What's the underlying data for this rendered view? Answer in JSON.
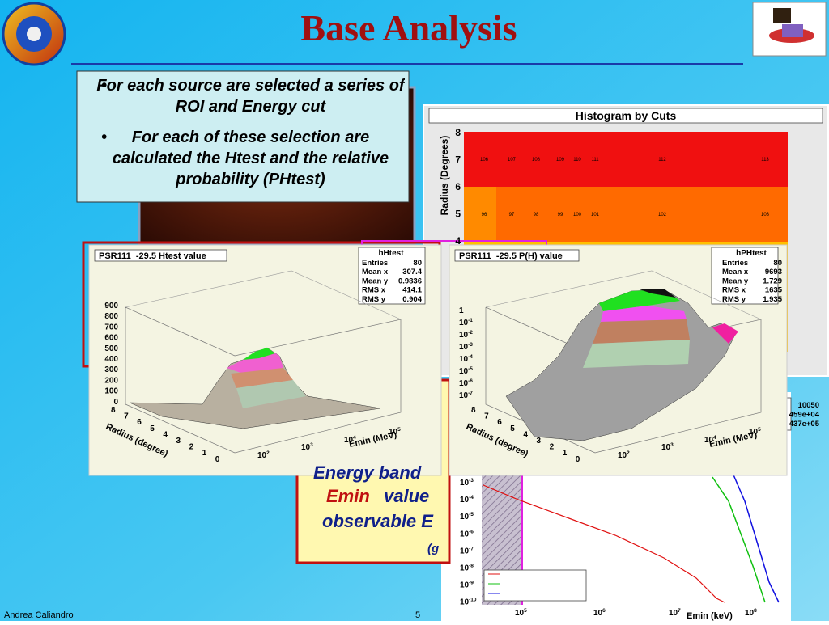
{
  "header": {
    "title": "Base Analysis"
  },
  "bullets": [
    "For each source are selected a series of ROI and Energy cut",
    "For each of these selection are calculated the Htest and the relative probability (PHtest)"
  ],
  "footer": {
    "author": "Andrea Caliandro",
    "page": "5"
  },
  "histogram_by_cuts": {
    "title": "Histogram by Cuts",
    "y_label": "Radius (Degrees)",
    "yticks": [
      "8",
      "7",
      "6",
      "5",
      "4"
    ],
    "row_top": [
      "106",
      "107",
      "108",
      "109",
      "110",
      "111",
      "112",
      "113"
    ],
    "row_middle": [
      "96",
      "97",
      "98",
      "99",
      "100",
      "101",
      "102",
      "103"
    ]
  },
  "htest_panel": {
    "title": "PSR111_-29.5 Htest value",
    "stats_name": "hHtest",
    "stats": [
      [
        "Entries",
        "80"
      ],
      [
        "Mean x",
        "307.4"
      ],
      [
        "Mean y",
        "0.9836"
      ],
      [
        "RMS x",
        "414.1"
      ],
      [
        "RMS y",
        "0.904"
      ]
    ],
    "zticks": [
      "900",
      "800",
      "700",
      "600",
      "500",
      "400",
      "300",
      "200",
      "100",
      "0"
    ],
    "radius_label": "Radius (degree)",
    "radius_ticks": [
      "8",
      "7",
      "6",
      "5",
      "4",
      "3",
      "2",
      "1",
      "0"
    ],
    "emin_label": "Emin (MeV)",
    "emin_ticks": [
      {
        "base": "10",
        "exp": "2"
      },
      {
        "base": "10",
        "exp": "3"
      },
      {
        "base": "10",
        "exp": "4"
      },
      {
        "base": "10",
        "exp": "5"
      }
    ]
  },
  "phtest_panel": {
    "title": "PSR111_-29.5 P(H) value",
    "stats_name": "hPHtest",
    "stats": [
      [
        "Entries",
        "80"
      ],
      [
        "Mean x",
        "9693"
      ],
      [
        "Mean y",
        "1.729"
      ],
      [
        "RMS x",
        "1635"
      ],
      [
        "RMS y",
        "1.935"
      ]
    ],
    "zticks": [
      {
        "base": "1",
        "exp": ""
      },
      {
        "base": "10",
        "exp": "-1"
      },
      {
        "base": "10",
        "exp": "-2"
      },
      {
        "base": "10",
        "exp": "-3"
      },
      {
        "base": "10",
        "exp": "-4"
      },
      {
        "base": "10",
        "exp": "-5"
      },
      {
        "base": "10",
        "exp": "-6"
      },
      {
        "base": "10",
        "exp": "-7"
      }
    ],
    "radius_label": "Radius (degree)",
    "radius_ticks": [
      "8",
      "7",
      "6",
      "5",
      "4",
      "3",
      "2",
      "1",
      "0"
    ],
    "emin_label": "Emin (MeV)",
    "emin_ticks": [
      {
        "base": "10",
        "exp": "2"
      },
      {
        "base": "10",
        "exp": "3"
      },
      {
        "base": "10",
        "exp": "4"
      },
      {
        "base": "10",
        "exp": "5"
      }
    ]
  },
  "flux_panel": {
    "stats": [
      "10050",
      "459e+04",
      "437e+05"
    ],
    "yticks": [
      {
        "base": "10",
        "exp": "-3"
      },
      {
        "base": "10",
        "exp": "-4"
      },
      {
        "base": "10",
        "exp": "-5"
      },
      {
        "base": "10",
        "exp": "-6"
      },
      {
        "base": "10",
        "exp": "-7"
      },
      {
        "base": "10",
        "exp": "-8"
      },
      {
        "base": "10",
        "exp": "-9"
      },
      {
        "base": "10",
        "exp": "-10"
      }
    ],
    "xticks": [
      {
        "base": "10",
        "exp": "5"
      },
      {
        "base": "10",
        "exp": "6"
      },
      {
        "base": "10",
        "exp": "7"
      },
      {
        "base": "10",
        "exp": "8"
      }
    ],
    "x_label": "Emin (keV)"
  },
  "note_box": {
    "line1": "Energy band",
    "line2_red": "Emin",
    "line2": "value",
    "line3": "observable E",
    "line4": "(g"
  }
}
